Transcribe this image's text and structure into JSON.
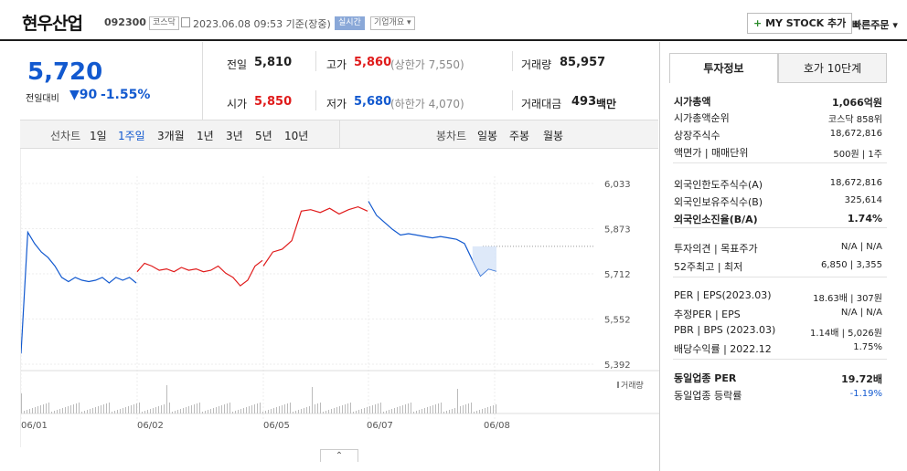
{
  "header": {
    "name": "현우산업",
    "code": "092300",
    "market": "코스닥",
    "datetime": "2023.06.08 09:53  기준(장중)",
    "realtime": "실시간",
    "company_info": "기업개요",
    "mystock": "MY STOCK 추가",
    "quick_order": "빠른주문"
  },
  "price": {
    "current": "5,720",
    "change_label": "전일대비",
    "change": "90",
    "change_rate": "-1.55%"
  },
  "summary": {
    "prev_label": "전일",
    "prev": "5,810",
    "high_label": "고가",
    "high": "5,860",
    "upper": "(상한가 7,550)",
    "volume_label": "거래량",
    "volume": "85,957",
    "open_label": "시가",
    "open": "5,850",
    "low_label": "저가",
    "low": "5,680",
    "lower": "(하한가 4,070)",
    "amount_label": "거래대금",
    "amount": "493",
    "amount_unit": "백만"
  },
  "tabs": {
    "line_label": "선차트",
    "line_periods": [
      "1일",
      "1주일",
      "3개월",
      "1년",
      "3년",
      "5년",
      "10년"
    ],
    "active_period": "1주일",
    "candle_label": "봉차트",
    "candle_periods": [
      "일봉",
      "주봉",
      "월봉"
    ]
  },
  "chart_data": {
    "type": "line",
    "y_ticks": [
      "6,033",
      "5,873",
      "5,712",
      "5,552",
      "5,392"
    ],
    "x_ticks": [
      "06/01",
      "06/02",
      "06/05",
      "06/07",
      "06/08"
    ],
    "ylim": [
      5392,
      6033
    ],
    "prev_close": 5810,
    "current": 5720,
    "volume_label": "거래량",
    "colors": {
      "up": "#e01b1b",
      "down": "#1259cf",
      "volume": "#bbbbbb"
    },
    "series": [
      {
        "values": [
          5430,
          5860,
          5820,
          5790,
          5770,
          5740,
          5700,
          5685,
          5700,
          5690,
          5685,
          5690,
          5700,
          5680,
          5700,
          5690,
          5700,
          5680
        ]
      },
      {
        "values": [
          5720,
          5750,
          5740,
          5725,
          5730,
          5720,
          5735,
          5725,
          5730,
          5720,
          5725,
          5740,
          5715,
          5700,
          5670,
          5690,
          5740,
          5760
        ]
      },
      {
        "values": [
          5740,
          5790,
          5800,
          5830,
          5935,
          5940,
          5930,
          5945,
          5925,
          5940,
          5950,
          5935
        ]
      },
      {
        "values": [
          5970,
          5920,
          5895,
          5870,
          5850,
          5855,
          5850,
          5845,
          5840,
          5845,
          5840,
          5835,
          5820,
          5760,
          5705,
          5730,
          5722
        ]
      }
    ]
  },
  "tabs_right": [
    "투자정보",
    "호가 10단계"
  ],
  "invest": [
    {
      "label": "시가총액",
      "value": "1,066억원",
      "bold": true
    },
    {
      "label": "시가총액순위",
      "value": "코스닥 858위"
    },
    {
      "label": "상장주식수",
      "value": "18,672,816"
    },
    {
      "label": "액면가 | 매매단위",
      "value": "500원 | 1주"
    },
    {
      "label": "외국인한도주식수(A)",
      "value": "18,672,816"
    },
    {
      "label": "외국인보유주식수(B)",
      "value": "325,614"
    },
    {
      "label": "외국인소진율(B/A)",
      "value": "1.74%",
      "bold": true
    },
    {
      "label": "투자의견 | 목표주가",
      "value": "N/A | N/A"
    },
    {
      "label": "52주최고 | 최저",
      "value": "6,850 | 3,355"
    },
    {
      "label": "PER | EPS(2023.03)",
      "value": "18.63배 | 307원"
    },
    {
      "label": "추정PER | EPS",
      "value": "N/A | N/A"
    },
    {
      "label": "PBR | BPS (2023.03)",
      "value": "1.14배 | 5,026원"
    },
    {
      "label": "배당수익률 | 2022.12",
      "value": "1.75%"
    },
    {
      "label": "동일업종 PER",
      "value": "19.72배",
      "bold": true
    },
    {
      "label": "동일업종 등락률",
      "value": "-1.19%"
    }
  ]
}
